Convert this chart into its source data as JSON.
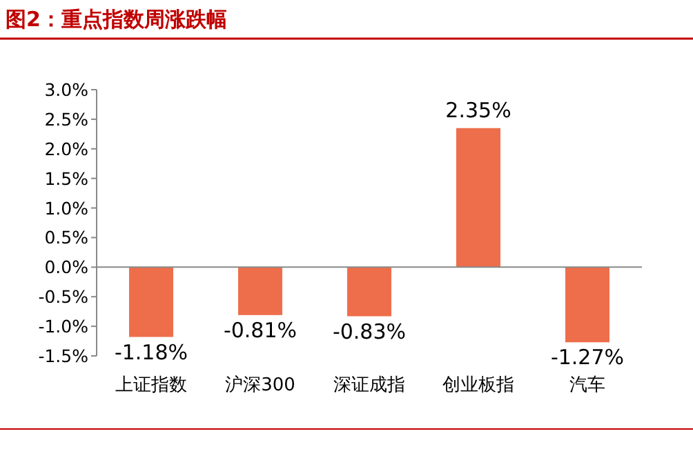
{
  "chart_data": {
    "type": "bar",
    "title": "图2：重点指数周涨跌幅",
    "categories": [
      "上证指数",
      "沪深300",
      "深证成指",
      "创业板指",
      "汽车"
    ],
    "values": [
      -1.18,
      -0.81,
      -0.83,
      2.35,
      -1.27
    ],
    "value_labels": [
      "-1.18%",
      "-0.81%",
      "-0.83%",
      "2.35%",
      "-1.27%"
    ],
    "color": "#ee6e4b",
    "ylim": [
      -1.5,
      3.0
    ],
    "yticks": [
      {
        "value": -1.5,
        "label": "-1.5%"
      },
      {
        "value": -1.0,
        "label": "-1.0%"
      },
      {
        "value": -0.5,
        "label": "-0.5%"
      },
      {
        "value": 0,
        "label": "0.0%"
      },
      {
        "value": 0.5,
        "label": "0.5%"
      },
      {
        "value": 1.0,
        "label": "1.0%"
      },
      {
        "value": 1.5,
        "label": "1.5%"
      },
      {
        "value": 2.0,
        "label": "2.0%"
      },
      {
        "value": 2.5,
        "label": "2.5%"
      },
      {
        "value": 3.0,
        "label": "3.0%"
      }
    ],
    "legend": false
  }
}
